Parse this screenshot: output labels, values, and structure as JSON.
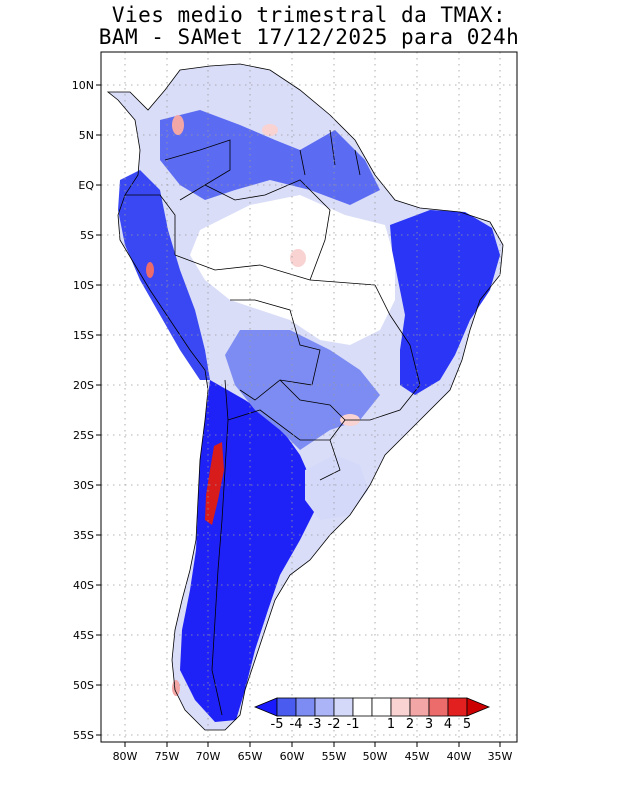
{
  "title": {
    "line1": "Vies medio trimestral da TMAX:",
    "line2": "BAM - SAMet 17/12/2025  para 024h"
  },
  "map": {
    "region": "South America",
    "lon_range": [
      -83,
      -34
    ],
    "lat_range": [
      -56,
      13
    ],
    "lon_ticks": [
      {
        "label": "80W",
        "value": -80
      },
      {
        "label": "75W",
        "value": -75
      },
      {
        "label": "70W",
        "value": -70
      },
      {
        "label": "65W",
        "value": -65
      },
      {
        "label": "60W",
        "value": -60
      },
      {
        "label": "55W",
        "value": -55
      },
      {
        "label": "50W",
        "value": -50
      },
      {
        "label": "45W",
        "value": -45
      },
      {
        "label": "40W",
        "value": -40
      },
      {
        "label": "35W",
        "value": -35
      }
    ],
    "lat_ticks": [
      {
        "label": "10N",
        "value": 10
      },
      {
        "label": "5N",
        "value": 5
      },
      {
        "label": "EQ",
        "value": 0
      },
      {
        "label": "5S",
        "value": -5
      },
      {
        "label": "10S",
        "value": -10
      },
      {
        "label": "15S",
        "value": -15
      },
      {
        "label": "20S",
        "value": -20
      },
      {
        "label": "25S",
        "value": -25
      },
      {
        "label": "30S",
        "value": -30
      },
      {
        "label": "35S",
        "value": -35
      },
      {
        "label": "40S",
        "value": -40
      },
      {
        "label": "45S",
        "value": -45
      },
      {
        "label": "50S",
        "value": -50
      },
      {
        "label": "55S",
        "value": -55
      }
    ]
  },
  "colorbar": {
    "labels": [
      "-5",
      "-4",
      "-3",
      "-2",
      "-1",
      "1",
      "2",
      "3",
      "4",
      "5"
    ],
    "colors": [
      "#1a1aff",
      "#4a5cf0",
      "#7d8cf2",
      "#aab4f6",
      "#d4d9fa",
      "#ffffff",
      "#f9d2d2",
      "#f3a6a6",
      "#ec6b6b",
      "#e32020",
      "#cc0000"
    ]
  }
}
